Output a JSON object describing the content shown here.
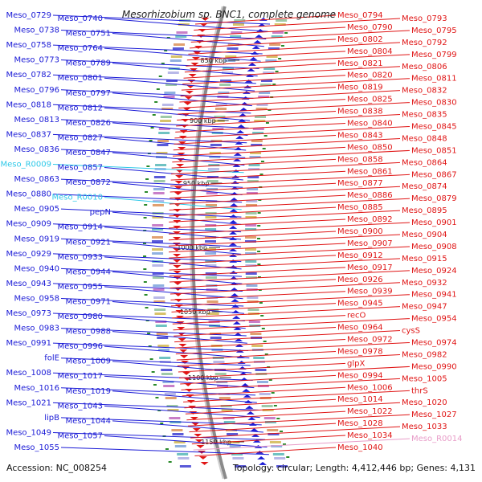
{
  "title": "Mesorhizobium sp. BNC1, complete genome",
  "accession": "Accession: NC_008254",
  "summary": "Topology: circular; Length: 4,412,446 bp; Genes: 4,131",
  "colors": {
    "forward": "#1a1ad6",
    "reverse": "#e01515",
    "rna": "#2ec8e8",
    "pseudo": "#e89cc8",
    "backbone": "#8a8a8a",
    "tick": "#2a8a2a"
  },
  "ticks": [
    "850 kbp",
    "900 kbp",
    "950 kbp",
    "1000 kbp",
    "1050 kbp",
    "1100 kbp",
    "1150 kbp"
  ],
  "left_labels": [
    {
      "text": "Meso_0729",
      "kind": "gene"
    },
    {
      "text": "Meso_0740",
      "kind": "gene"
    },
    {
      "text": "Meso_0738",
      "kind": "gene"
    },
    {
      "text": "Meso_0751",
      "kind": "gene"
    },
    {
      "text": "Meso_0758",
      "kind": "gene"
    },
    {
      "text": "Meso_0764",
      "kind": "gene"
    },
    {
      "text": "Meso_0773",
      "kind": "gene"
    },
    {
      "text": "Meso_0789",
      "kind": "gene"
    },
    {
      "text": "Meso_0782",
      "kind": "gene"
    },
    {
      "text": "Meso_0801",
      "kind": "gene"
    },
    {
      "text": "Meso_0796",
      "kind": "gene"
    },
    {
      "text": "Meso_0797",
      "kind": "gene"
    },
    {
      "text": "Meso_0818",
      "kind": "gene"
    },
    {
      "text": "Meso_0812",
      "kind": "gene"
    },
    {
      "text": "Meso_0813",
      "kind": "gene"
    },
    {
      "text": "Meso_0826",
      "kind": "gene"
    },
    {
      "text": "Meso_0837",
      "kind": "gene"
    },
    {
      "text": "Meso_0827",
      "kind": "gene"
    },
    {
      "text": "Meso_0836",
      "kind": "gene"
    },
    {
      "text": "Meso_0847",
      "kind": "gene"
    },
    {
      "text": "Meso_R0009",
      "kind": "rna"
    },
    {
      "text": "Meso_0857",
      "kind": "gene"
    },
    {
      "text": "Meso_0863",
      "kind": "gene"
    },
    {
      "text": "Meso_0872",
      "kind": "gene"
    },
    {
      "text": "Meso_0880",
      "kind": "gene"
    },
    {
      "text": "Meso_R0010",
      "kind": "rna"
    },
    {
      "text": "Meso_0905",
      "kind": "gene"
    },
    {
      "text": "pepN",
      "kind": "gene"
    },
    {
      "text": "Meso_0909",
      "kind": "gene"
    },
    {
      "text": "Meso_0914",
      "kind": "gene"
    },
    {
      "text": "Meso_0919",
      "kind": "gene"
    },
    {
      "text": "Meso_0921",
      "kind": "gene"
    },
    {
      "text": "Meso_0929",
      "kind": "gene"
    },
    {
      "text": "Meso_0933",
      "kind": "gene"
    },
    {
      "text": "Meso_0940",
      "kind": "gene"
    },
    {
      "text": "Meso_0944",
      "kind": "gene"
    },
    {
      "text": "Meso_0943",
      "kind": "gene"
    },
    {
      "text": "Meso_0955",
      "kind": "gene"
    },
    {
      "text": "Meso_0958",
      "kind": "gene"
    },
    {
      "text": "Meso_0971",
      "kind": "gene"
    },
    {
      "text": "Meso_0973",
      "kind": "gene"
    },
    {
      "text": "Meso_0980",
      "kind": "gene"
    },
    {
      "text": "Meso_0983",
      "kind": "gene"
    },
    {
      "text": "Meso_0988",
      "kind": "gene"
    },
    {
      "text": "Meso_0991",
      "kind": "gene"
    },
    {
      "text": "Meso_0996",
      "kind": "gene"
    },
    {
      "text": "folE",
      "kind": "gene"
    },
    {
      "text": "Meso_1009",
      "kind": "gene"
    },
    {
      "text": "Meso_1008",
      "kind": "gene"
    },
    {
      "text": "Meso_1017",
      "kind": "gene"
    },
    {
      "text": "Meso_1016",
      "kind": "gene"
    },
    {
      "text": "Meso_1019",
      "kind": "gene"
    },
    {
      "text": "Meso_1021",
      "kind": "gene"
    },
    {
      "text": "Meso_1043",
      "kind": "gene"
    },
    {
      "text": "lipB",
      "kind": "gene"
    },
    {
      "text": "Meso_1044",
      "kind": "gene"
    },
    {
      "text": "Meso_1049",
      "kind": "gene"
    },
    {
      "text": "Meso_1057",
      "kind": "gene"
    },
    {
      "text": "Meso_1055",
      "kind": "gene"
    }
  ],
  "right_labels": [
    {
      "text": "Meso_0794",
      "kind": "gene"
    },
    {
      "text": "Meso_0793",
      "kind": "gene"
    },
    {
      "text": "Meso_0790",
      "kind": "gene"
    },
    {
      "text": "Meso_0795",
      "kind": "gene"
    },
    {
      "text": "Meso_0802",
      "kind": "gene"
    },
    {
      "text": "Meso_0792",
      "kind": "gene"
    },
    {
      "text": "Meso_0804",
      "kind": "gene"
    },
    {
      "text": "Meso_0799",
      "kind": "gene"
    },
    {
      "text": "Meso_0821",
      "kind": "gene"
    },
    {
      "text": "Meso_0806",
      "kind": "gene"
    },
    {
      "text": "Meso_0820",
      "kind": "gene"
    },
    {
      "text": "Meso_0811",
      "kind": "gene"
    },
    {
      "text": "Meso_0819",
      "kind": "gene"
    },
    {
      "text": "Meso_0832",
      "kind": "gene"
    },
    {
      "text": "Meso_0825",
      "kind": "gene"
    },
    {
      "text": "Meso_0830",
      "kind": "gene"
    },
    {
      "text": "Meso_0838",
      "kind": "gene"
    },
    {
      "text": "Meso_0835",
      "kind": "gene"
    },
    {
      "text": "Meso_0840",
      "kind": "gene"
    },
    {
      "text": "Meso_0845",
      "kind": "gene"
    },
    {
      "text": "Meso_0843",
      "kind": "gene"
    },
    {
      "text": "Meso_0848",
      "kind": "gene"
    },
    {
      "text": "Meso_0850",
      "kind": "gene"
    },
    {
      "text": "Meso_0851",
      "kind": "gene"
    },
    {
      "text": "Meso_0858",
      "kind": "gene"
    },
    {
      "text": "Meso_0864",
      "kind": "gene"
    },
    {
      "text": "Meso_0861",
      "kind": "gene"
    },
    {
      "text": "Meso_0867",
      "kind": "gene"
    },
    {
      "text": "Meso_0877",
      "kind": "gene"
    },
    {
      "text": "Meso_0874",
      "kind": "gene"
    },
    {
      "text": "Meso_0886",
      "kind": "gene"
    },
    {
      "text": "Meso_0879",
      "kind": "gene"
    },
    {
      "text": "Meso_0885",
      "kind": "gene"
    },
    {
      "text": "Meso_0895",
      "kind": "gene"
    },
    {
      "text": "Meso_0892",
      "kind": "gene"
    },
    {
      "text": "Meso_0901",
      "kind": "gene"
    },
    {
      "text": "Meso_0900",
      "kind": "gene"
    },
    {
      "text": "Meso_0904",
      "kind": "gene"
    },
    {
      "text": "Meso_0907",
      "kind": "gene"
    },
    {
      "text": "Meso_0908",
      "kind": "gene"
    },
    {
      "text": "Meso_0912",
      "kind": "gene"
    },
    {
      "text": "Meso_0915",
      "kind": "gene"
    },
    {
      "text": "Meso_0917",
      "kind": "gene"
    },
    {
      "text": "Meso_0924",
      "kind": "gene"
    },
    {
      "text": "Meso_0926",
      "kind": "gene"
    },
    {
      "text": "Meso_0932",
      "kind": "gene"
    },
    {
      "text": "Meso_0939",
      "kind": "gene"
    },
    {
      "text": "Meso_0941",
      "kind": "gene"
    },
    {
      "text": "Meso_0945",
      "kind": "gene"
    },
    {
      "text": "Meso_0947",
      "kind": "gene"
    },
    {
      "text": "recO",
      "kind": "gene"
    },
    {
      "text": "Meso_0954",
      "kind": "gene"
    },
    {
      "text": "Meso_0964",
      "kind": "gene"
    },
    {
      "text": "cysS",
      "kind": "gene"
    },
    {
      "text": "Meso_0972",
      "kind": "gene"
    },
    {
      "text": "Meso_0974",
      "kind": "gene"
    },
    {
      "text": "Meso_0978",
      "kind": "gene"
    },
    {
      "text": "Meso_0982",
      "kind": "gene"
    },
    {
      "text": "glpX",
      "kind": "gene"
    },
    {
      "text": "Meso_0990",
      "kind": "gene"
    },
    {
      "text": "Meso_0994",
      "kind": "gene"
    },
    {
      "text": "Meso_1005",
      "kind": "gene"
    },
    {
      "text": "Meso_1006",
      "kind": "gene"
    },
    {
      "text": "thrS",
      "kind": "gene"
    },
    {
      "text": "Meso_1014",
      "kind": "gene"
    },
    {
      "text": "Meso_1020",
      "kind": "gene"
    },
    {
      "text": "Meso_1022",
      "kind": "gene"
    },
    {
      "text": "Meso_1027",
      "kind": "gene"
    },
    {
      "text": "Meso_1028",
      "kind": "gene"
    },
    {
      "text": "Meso_1033",
      "kind": "gene"
    },
    {
      "text": "Meso_1034",
      "kind": "gene"
    },
    {
      "text": "Meso_R0014",
      "kind": "pseudo"
    },
    {
      "text": "Meso_1040",
      "kind": "gene"
    }
  ]
}
